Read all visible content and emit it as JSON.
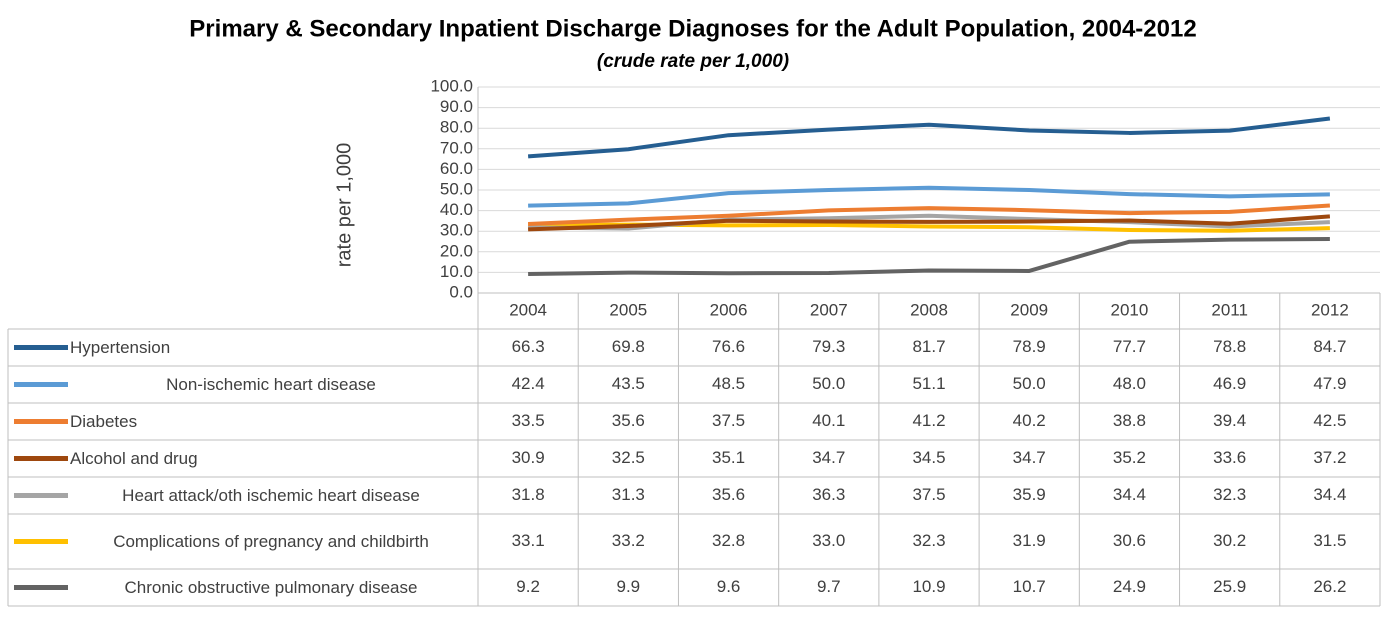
{
  "chart_data": {
    "type": "line",
    "title": "Primary & Secondary Inpatient Discharge Diagnoses for the Adult Population, 2004-2012",
    "subtitle": "(crude rate per 1,000)",
    "y_label": "rate per 1,000",
    "categories": [
      "2004",
      "2005",
      "2006",
      "2007",
      "2008",
      "2009",
      "2010",
      "2011",
      "2012"
    ],
    "ylim": [
      0,
      100
    ],
    "yticks": [
      {
        "value": 0,
        "label": "0.0"
      },
      {
        "value": 10,
        "label": "10.0"
      },
      {
        "value": 20,
        "label": "20.0"
      },
      {
        "value": 30,
        "label": "30.0"
      },
      {
        "value": 40,
        "label": "40.0"
      },
      {
        "value": 50,
        "label": "50.0"
      },
      {
        "value": 60,
        "label": "60.0"
      },
      {
        "value": 70,
        "label": "70.0"
      },
      {
        "value": 80,
        "label": "80.0"
      },
      {
        "value": 90,
        "label": "90.0"
      },
      {
        "value": 100,
        "label": "100.0"
      }
    ],
    "grid": true,
    "series": [
      {
        "name": "Hypertension",
        "color": "#255e91",
        "values": [
          66.3,
          69.8,
          76.6,
          79.3,
          81.7,
          78.9,
          77.7,
          78.8,
          84.7
        ],
        "value_labels": [
          "66.3",
          "69.8",
          "76.6",
          "79.3",
          "81.7",
          "78.9",
          "77.7",
          "78.8",
          "84.7"
        ]
      },
      {
        "name": "Non-ischemic heart disease",
        "color": "#5b9bd5",
        "values": [
          42.4,
          43.5,
          48.5,
          50.0,
          51.1,
          50.0,
          48.0,
          46.9,
          47.9
        ],
        "value_labels": [
          "42.4",
          "43.5",
          "48.5",
          "50.0",
          "51.1",
          "50.0",
          "48.0",
          "46.9",
          "47.9"
        ]
      },
      {
        "name": "Diabetes",
        "color": "#ed7d31",
        "values": [
          33.5,
          35.6,
          37.5,
          40.1,
          41.2,
          40.2,
          38.8,
          39.4,
          42.5
        ],
        "value_labels": [
          "33.5",
          "35.6",
          "37.5",
          "40.1",
          "41.2",
          "40.2",
          "38.8",
          "39.4",
          "42.5"
        ]
      },
      {
        "name": "Alcohol and drug",
        "color": "#9e480e",
        "values": [
          30.9,
          32.5,
          35.1,
          34.7,
          34.5,
          34.7,
          35.2,
          33.6,
          37.2
        ],
        "value_labels": [
          "30.9",
          "32.5",
          "35.1",
          "34.7",
          "34.5",
          "34.7",
          "35.2",
          "33.6",
          "37.2"
        ]
      },
      {
        "name": "Heart attack/oth ischemic heart disease",
        "color": "#a5a5a5",
        "values": [
          31.8,
          31.3,
          35.6,
          36.3,
          37.5,
          35.9,
          34.4,
          32.3,
          34.4
        ],
        "value_labels": [
          "31.8",
          "31.3",
          "35.6",
          "36.3",
          "37.5",
          "35.9",
          "34.4",
          "32.3",
          "34.4"
        ]
      },
      {
        "name": "Complications of pregnancy and childbirth",
        "color": "#ffc000",
        "values": [
          33.1,
          33.2,
          32.8,
          33.0,
          32.3,
          31.9,
          30.6,
          30.2,
          31.5
        ],
        "value_labels": [
          "33.1",
          "33.2",
          "32.8",
          "33.0",
          "32.3",
          "31.9",
          "30.6",
          "30.2",
          "31.5"
        ]
      },
      {
        "name": "Chronic obstructive pulmonary disease",
        "color": "#636363",
        "values": [
          9.2,
          9.9,
          9.6,
          9.7,
          10.9,
          10.7,
          24.9,
          25.9,
          26.2
        ],
        "value_labels": [
          "9.2",
          "9.9",
          "9.6",
          "9.7",
          "10.9",
          "10.7",
          "24.9",
          "25.9",
          "26.2"
        ]
      }
    ]
  }
}
